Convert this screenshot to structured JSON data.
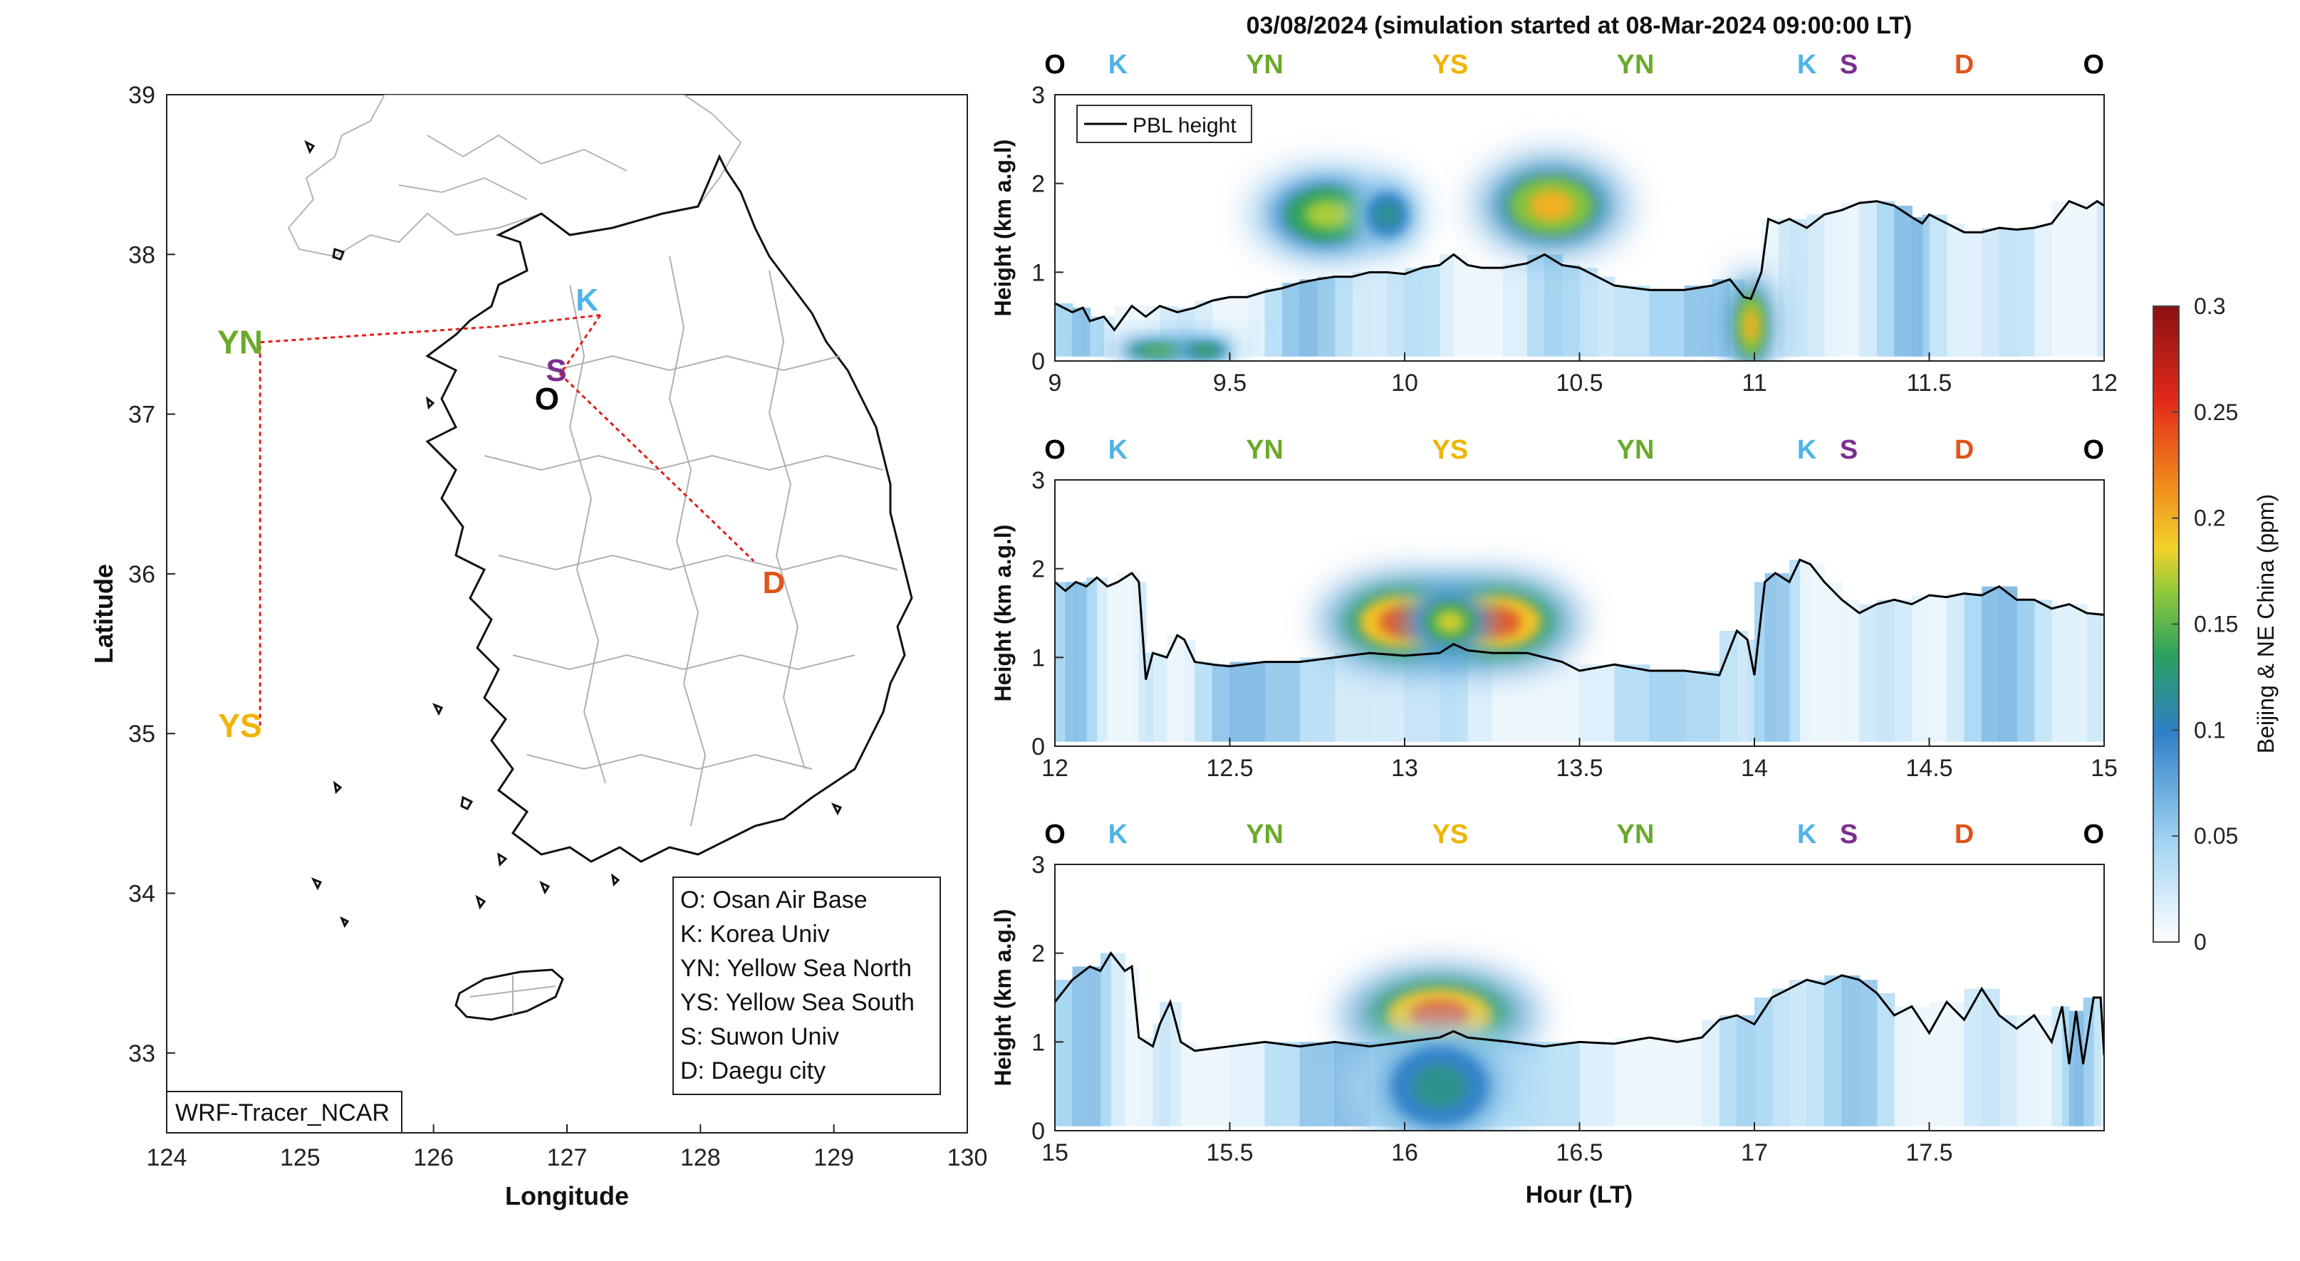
{
  "figure": {
    "title": "03/08/2024 (simulation started at 08-Mar-2024 09:00:00 LT)",
    "source_label": "WRF-Tracer_NCAR"
  },
  "colors": {
    "O": "#000000",
    "K": "#4fb3e6",
    "YN": "#6aaa2a",
    "YS": "#f0b400",
    "S": "#7b2f8e",
    "D": "#e0541a",
    "route": "#e0201a",
    "pbl": "#000000"
  },
  "map": {
    "xlabel": "Longitude",
    "ylabel": "Latitude",
    "xlim": [
      124,
      130
    ],
    "ylim": [
      32.5,
      39
    ],
    "xticks": [
      "124",
      "125",
      "126",
      "127",
      "128",
      "129",
      "130"
    ],
    "yticks": [
      "33",
      "34",
      "35",
      "36",
      "37",
      "38",
      "39"
    ],
    "sites": [
      {
        "code": "O",
        "lon": 126.85,
        "lat": 37.1
      },
      {
        "code": "K",
        "lon": 127.15,
        "lat": 37.72
      },
      {
        "code": "S",
        "lon": 126.92,
        "lat": 37.28
      },
      {
        "code": "YN",
        "lon": 124.55,
        "lat": 37.45
      },
      {
        "code": "YS",
        "lon": 124.55,
        "lat": 35.05
      },
      {
        "code": "D",
        "lon": 128.55,
        "lat": 35.95
      }
    ],
    "route": [
      [
        127.25,
        37.62
      ],
      [
        126.5,
        37.55
      ],
      [
        124.7,
        37.45
      ],
      [
        124.7,
        35.05
      ]
    ],
    "route2": [
      [
        127.25,
        37.62
      ],
      [
        126.95,
        37.25
      ],
      [
        128.4,
        36.08
      ]
    ],
    "legend": [
      "O: Osan Air Base",
      "K: Korea Univ",
      "YN: Yellow Sea North",
      "YS: Yellow Sea South",
      "S: Suwon Univ",
      "D: Daegu city"
    ]
  },
  "timeseries": {
    "ylabel": "Height (km a.g.l)",
    "xlabel": "Hour (LT)",
    "ylim": [
      0,
      3
    ],
    "yticks": [
      "0",
      "1",
      "2",
      "3"
    ],
    "legend_label": "PBL height",
    "panels": [
      {
        "xlim": [
          9,
          12
        ],
        "xticks": [
          "9",
          "9.5",
          "10",
          "10.5",
          "11",
          "11.5",
          "12"
        ],
        "site_labels": [
          {
            "code": "O",
            "x": 9.0
          },
          {
            "code": "K",
            "x": 9.18
          },
          {
            "code": "YN",
            "x": 9.6
          },
          {
            "code": "YS",
            "x": 10.13
          },
          {
            "code": "YN",
            "x": 10.66
          },
          {
            "code": "K",
            "x": 11.15
          },
          {
            "code": "S",
            "x": 11.27
          },
          {
            "code": "D",
            "x": 11.6
          },
          {
            "code": "O",
            "x": 11.97
          }
        ],
        "pbl": [
          [
            9.0,
            0.65
          ],
          [
            9.05,
            0.55
          ],
          [
            9.08,
            0.6
          ],
          [
            9.1,
            0.45
          ],
          [
            9.14,
            0.5
          ],
          [
            9.17,
            0.35
          ],
          [
            9.22,
            0.62
          ],
          [
            9.26,
            0.5
          ],
          [
            9.3,
            0.62
          ],
          [
            9.35,
            0.55
          ],
          [
            9.4,
            0.6
          ],
          [
            9.45,
            0.68
          ],
          [
            9.5,
            0.72
          ],
          [
            9.55,
            0.72
          ],
          [
            9.6,
            0.78
          ],
          [
            9.65,
            0.82
          ],
          [
            9.7,
            0.88
          ],
          [
            9.75,
            0.92
          ],
          [
            9.8,
            0.95
          ],
          [
            9.85,
            0.95
          ],
          [
            9.9,
            1.0
          ],
          [
            9.95,
            1.0
          ],
          [
            10.0,
            0.98
          ],
          [
            10.05,
            1.05
          ],
          [
            10.1,
            1.08
          ],
          [
            10.14,
            1.2
          ],
          [
            10.18,
            1.08
          ],
          [
            10.22,
            1.05
          ],
          [
            10.28,
            1.05
          ],
          [
            10.35,
            1.1
          ],
          [
            10.4,
            1.2
          ],
          [
            10.45,
            1.08
          ],
          [
            10.5,
            1.05
          ],
          [
            10.55,
            0.95
          ],
          [
            10.6,
            0.85
          ],
          [
            10.7,
            0.8
          ],
          [
            10.8,
            0.8
          ],
          [
            10.88,
            0.85
          ],
          [
            10.93,
            0.92
          ],
          [
            10.97,
            0.72
          ],
          [
            10.99,
            0.7
          ],
          [
            11.02,
            1.0
          ],
          [
            11.04,
            1.6
          ],
          [
            11.07,
            1.55
          ],
          [
            11.1,
            1.6
          ],
          [
            11.15,
            1.5
          ],
          [
            11.2,
            1.65
          ],
          [
            11.25,
            1.7
          ],
          [
            11.3,
            1.78
          ],
          [
            11.35,
            1.8
          ],
          [
            11.4,
            1.75
          ],
          [
            11.45,
            1.62
          ],
          [
            11.48,
            1.55
          ],
          [
            11.5,
            1.65
          ],
          [
            11.55,
            1.55
          ],
          [
            11.6,
            1.45
          ],
          [
            11.65,
            1.45
          ],
          [
            11.7,
            1.5
          ],
          [
            11.75,
            1.48
          ],
          [
            11.8,
            1.5
          ],
          [
            11.85,
            1.55
          ],
          [
            11.9,
            1.8
          ],
          [
            11.95,
            1.72
          ],
          [
            11.98,
            1.8
          ],
          [
            12.0,
            1.75
          ]
        ],
        "blobs": [
          {
            "x": 9.3,
            "y": 0.12,
            "w": 0.09,
            "h": 0.09,
            "c": 0.15
          },
          {
            "x": 9.43,
            "y": 0.12,
            "w": 0.06,
            "h": 0.09,
            "c": 0.14
          },
          {
            "x": 9.78,
            "y": 1.65,
            "w": 0.12,
            "h": 0.3,
            "c": 0.17
          },
          {
            "x": 9.95,
            "y": 1.65,
            "w": 0.06,
            "h": 0.25,
            "c": 0.12
          },
          {
            "x": 10.42,
            "y": 1.75,
            "w": 0.12,
            "h": 0.32,
            "c": 0.2
          },
          {
            "x": 10.99,
            "y": 0.4,
            "w": 0.04,
            "h": 0.35,
            "c": 0.2
          }
        ]
      },
      {
        "xlim": [
          12,
          15
        ],
        "xticks": [
          "12",
          "12.5",
          "13",
          "13.5",
          "14",
          "14.5",
          "15"
        ],
        "site_labels": [
          {
            "code": "O",
            "x": 12.0
          },
          {
            "code": "K",
            "x": 12.18
          },
          {
            "code": "YN",
            "x": 12.6
          },
          {
            "code": "YS",
            "x": 13.13
          },
          {
            "code": "YN",
            "x": 13.66
          },
          {
            "code": "K",
            "x": 14.15
          },
          {
            "code": "S",
            "x": 14.27
          },
          {
            "code": "D",
            "x": 14.6
          },
          {
            "code": "O",
            "x": 14.97
          }
        ],
        "pbl": [
          [
            12.0,
            1.85
          ],
          [
            12.03,
            1.75
          ],
          [
            12.06,
            1.85
          ],
          [
            12.09,
            1.8
          ],
          [
            12.12,
            1.9
          ],
          [
            12.15,
            1.8
          ],
          [
            12.18,
            1.85
          ],
          [
            12.22,
            1.95
          ],
          [
            12.24,
            1.85
          ],
          [
            12.26,
            0.75
          ],
          [
            12.28,
            1.05
          ],
          [
            12.32,
            1.0
          ],
          [
            12.35,
            1.25
          ],
          [
            12.37,
            1.2
          ],
          [
            12.4,
            0.95
          ],
          [
            12.45,
            0.92
          ],
          [
            12.5,
            0.9
          ],
          [
            12.6,
            0.95
          ],
          [
            12.7,
            0.95
          ],
          [
            12.8,
            1.0
          ],
          [
            12.9,
            1.05
          ],
          [
            13.0,
            1.02
          ],
          [
            13.1,
            1.05
          ],
          [
            13.14,
            1.15
          ],
          [
            13.18,
            1.08
          ],
          [
            13.25,
            1.05
          ],
          [
            13.35,
            1.05
          ],
          [
            13.45,
            0.95
          ],
          [
            13.5,
            0.85
          ],
          [
            13.6,
            0.92
          ],
          [
            13.7,
            0.85
          ],
          [
            13.8,
            0.85
          ],
          [
            13.9,
            0.8
          ],
          [
            13.95,
            1.3
          ],
          [
            13.98,
            1.2
          ],
          [
            14.0,
            0.8
          ],
          [
            14.03,
            1.85
          ],
          [
            14.06,
            1.95
          ],
          [
            14.1,
            1.85
          ],
          [
            14.13,
            2.1
          ],
          [
            14.16,
            2.05
          ],
          [
            14.2,
            1.85
          ],
          [
            14.25,
            1.65
          ],
          [
            14.3,
            1.5
          ],
          [
            14.35,
            1.6
          ],
          [
            14.4,
            1.65
          ],
          [
            14.45,
            1.6
          ],
          [
            14.5,
            1.7
          ],
          [
            14.55,
            1.68
          ],
          [
            14.6,
            1.72
          ],
          [
            14.65,
            1.7
          ],
          [
            14.7,
            1.8
          ],
          [
            14.75,
            1.65
          ],
          [
            14.8,
            1.65
          ],
          [
            14.85,
            1.55
          ],
          [
            14.9,
            1.6
          ],
          [
            14.95,
            1.5
          ],
          [
            15.0,
            1.48
          ]
        ],
        "blobs": [
          {
            "x": 13.0,
            "y": 1.4,
            "w": 0.13,
            "h": 0.3,
            "c": 0.24
          },
          {
            "x": 13.26,
            "y": 1.4,
            "w": 0.13,
            "h": 0.3,
            "c": 0.24
          },
          {
            "x": 13.13,
            "y": 1.4,
            "w": 0.07,
            "h": 0.22,
            "c": 0.18
          }
        ]
      },
      {
        "xlim": [
          15,
          18
        ],
        "xticks": [
          "15",
          "15.5",
          "16",
          "16.5",
          "17",
          "17.5"
        ],
        "site_labels": [
          {
            "code": "O",
            "x": 15.0
          },
          {
            "code": "K",
            "x": 15.18
          },
          {
            "code": "YN",
            "x": 15.6
          },
          {
            "code": "YS",
            "x": 16.13
          },
          {
            "code": "YN",
            "x": 16.66
          },
          {
            "code": "K",
            "x": 17.15
          },
          {
            "code": "S",
            "x": 17.27
          },
          {
            "code": "D",
            "x": 17.6
          },
          {
            "code": "O",
            "x": 17.97
          }
        ],
        "pbl": [
          [
            15.0,
            1.45
          ],
          [
            15.05,
            1.7
          ],
          [
            15.1,
            1.85
          ],
          [
            15.13,
            1.8
          ],
          [
            15.16,
            2.0
          ],
          [
            15.2,
            1.8
          ],
          [
            15.22,
            1.85
          ],
          [
            15.24,
            1.05
          ],
          [
            15.28,
            0.95
          ],
          [
            15.3,
            1.2
          ],
          [
            15.33,
            1.45
          ],
          [
            15.36,
            1.0
          ],
          [
            15.4,
            0.9
          ],
          [
            15.5,
            0.95
          ],
          [
            15.6,
            1.0
          ],
          [
            15.7,
            0.95
          ],
          [
            15.8,
            1.0
          ],
          [
            15.9,
            0.95
          ],
          [
            16.0,
            1.0
          ],
          [
            16.1,
            1.05
          ],
          [
            16.14,
            1.12
          ],
          [
            16.18,
            1.05
          ],
          [
            16.3,
            1.0
          ],
          [
            16.4,
            0.95
          ],
          [
            16.5,
            1.0
          ],
          [
            16.6,
            0.98
          ],
          [
            16.7,
            1.05
          ],
          [
            16.78,
            1.0
          ],
          [
            16.85,
            1.05
          ],
          [
            16.9,
            1.25
          ],
          [
            16.95,
            1.3
          ],
          [
            17.0,
            1.2
          ],
          [
            17.05,
            1.5
          ],
          [
            17.1,
            1.6
          ],
          [
            17.15,
            1.7
          ],
          [
            17.2,
            1.65
          ],
          [
            17.25,
            1.75
          ],
          [
            17.3,
            1.7
          ],
          [
            17.35,
            1.55
          ],
          [
            17.4,
            1.3
          ],
          [
            17.45,
            1.4
          ],
          [
            17.5,
            1.1
          ],
          [
            17.55,
            1.45
          ],
          [
            17.6,
            1.25
          ],
          [
            17.65,
            1.6
          ],
          [
            17.7,
            1.3
          ],
          [
            17.75,
            1.15
          ],
          [
            17.8,
            1.3
          ],
          [
            17.85,
            1.0
          ],
          [
            17.88,
            1.4
          ],
          [
            17.9,
            0.75
          ],
          [
            17.92,
            1.35
          ],
          [
            17.94,
            0.75
          ],
          [
            17.97,
            1.5
          ],
          [
            17.99,
            1.5
          ],
          [
            18.0,
            0.85
          ]
        ],
        "blobs": [
          {
            "x": 16.1,
            "y": 1.3,
            "w": 0.15,
            "h": 0.3,
            "c": 0.24
          },
          {
            "x": 16.1,
            "y": 0.5,
            "w": 0.14,
            "h": 0.45,
            "c": 0.12
          }
        ]
      }
    ]
  },
  "colorbar": {
    "label": "Beijing & NE China (ppm)",
    "ticks": [
      "0",
      "0.05",
      "0.1",
      "0.15",
      "0.2",
      "0.25",
      "0.3"
    ],
    "range": [
      0,
      0.3
    ]
  }
}
